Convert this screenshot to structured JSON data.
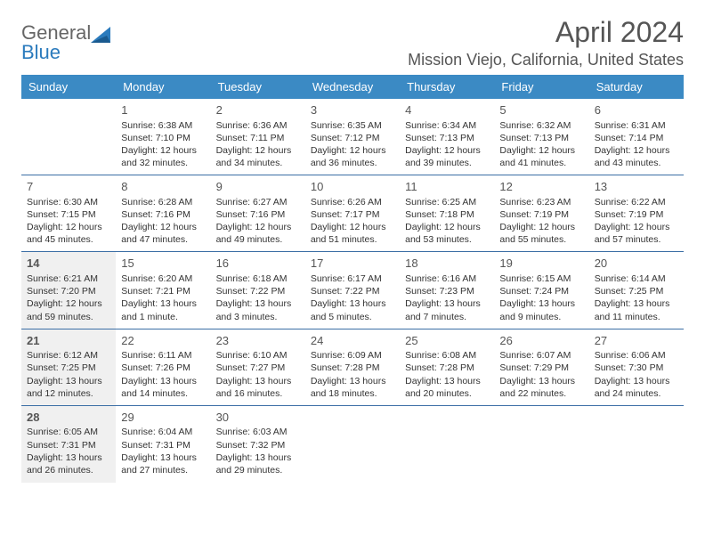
{
  "logo": {
    "text_top": "General",
    "text_bottom": "Blue",
    "accent_color": "#2b7bbd",
    "text_color": "#666666"
  },
  "title": "April 2024",
  "location": "Mission Viejo, California, United States",
  "colors": {
    "header_bg": "#3b8ac4",
    "row_border": "#3b6ea5",
    "shaded_bg": "#f0f0f0",
    "text": "#333333",
    "daynum": "#555555"
  },
  "day_headers": [
    "Sunday",
    "Monday",
    "Tuesday",
    "Wednesday",
    "Thursday",
    "Friday",
    "Saturday"
  ],
  "weeks": [
    [
      {
        "empty": true
      },
      {
        "day": "1",
        "sunrise": "Sunrise: 6:38 AM",
        "sunset": "Sunset: 7:10 PM",
        "daylight1": "Daylight: 12 hours",
        "daylight2": "and 32 minutes."
      },
      {
        "day": "2",
        "sunrise": "Sunrise: 6:36 AM",
        "sunset": "Sunset: 7:11 PM",
        "daylight1": "Daylight: 12 hours",
        "daylight2": "and 34 minutes."
      },
      {
        "day": "3",
        "sunrise": "Sunrise: 6:35 AM",
        "sunset": "Sunset: 7:12 PM",
        "daylight1": "Daylight: 12 hours",
        "daylight2": "and 36 minutes."
      },
      {
        "day": "4",
        "sunrise": "Sunrise: 6:34 AM",
        "sunset": "Sunset: 7:13 PM",
        "daylight1": "Daylight: 12 hours",
        "daylight2": "and 39 minutes."
      },
      {
        "day": "5",
        "sunrise": "Sunrise: 6:32 AM",
        "sunset": "Sunset: 7:13 PM",
        "daylight1": "Daylight: 12 hours",
        "daylight2": "and 41 minutes."
      },
      {
        "day": "6",
        "sunrise": "Sunrise: 6:31 AM",
        "sunset": "Sunset: 7:14 PM",
        "daylight1": "Daylight: 12 hours",
        "daylight2": "and 43 minutes."
      }
    ],
    [
      {
        "day": "7",
        "sunrise": "Sunrise: 6:30 AM",
        "sunset": "Sunset: 7:15 PM",
        "daylight1": "Daylight: 12 hours",
        "daylight2": "and 45 minutes."
      },
      {
        "day": "8",
        "sunrise": "Sunrise: 6:28 AM",
        "sunset": "Sunset: 7:16 PM",
        "daylight1": "Daylight: 12 hours",
        "daylight2": "and 47 minutes."
      },
      {
        "day": "9",
        "sunrise": "Sunrise: 6:27 AM",
        "sunset": "Sunset: 7:16 PM",
        "daylight1": "Daylight: 12 hours",
        "daylight2": "and 49 minutes."
      },
      {
        "day": "10",
        "sunrise": "Sunrise: 6:26 AM",
        "sunset": "Sunset: 7:17 PM",
        "daylight1": "Daylight: 12 hours",
        "daylight2": "and 51 minutes."
      },
      {
        "day": "11",
        "sunrise": "Sunrise: 6:25 AM",
        "sunset": "Sunset: 7:18 PM",
        "daylight1": "Daylight: 12 hours",
        "daylight2": "and 53 minutes."
      },
      {
        "day": "12",
        "sunrise": "Sunrise: 6:23 AM",
        "sunset": "Sunset: 7:19 PM",
        "daylight1": "Daylight: 12 hours",
        "daylight2": "and 55 minutes."
      },
      {
        "day": "13",
        "sunrise": "Sunrise: 6:22 AM",
        "sunset": "Sunset: 7:19 PM",
        "daylight1": "Daylight: 12 hours",
        "daylight2": "and 57 minutes."
      }
    ],
    [
      {
        "day": "14",
        "shaded": true,
        "sunrise": "Sunrise: 6:21 AM",
        "sunset": "Sunset: 7:20 PM",
        "daylight1": "Daylight: 12 hours",
        "daylight2": "and 59 minutes."
      },
      {
        "day": "15",
        "sunrise": "Sunrise: 6:20 AM",
        "sunset": "Sunset: 7:21 PM",
        "daylight1": "Daylight: 13 hours",
        "daylight2": "and 1 minute."
      },
      {
        "day": "16",
        "sunrise": "Sunrise: 6:18 AM",
        "sunset": "Sunset: 7:22 PM",
        "daylight1": "Daylight: 13 hours",
        "daylight2": "and 3 minutes."
      },
      {
        "day": "17",
        "sunrise": "Sunrise: 6:17 AM",
        "sunset": "Sunset: 7:22 PM",
        "daylight1": "Daylight: 13 hours",
        "daylight2": "and 5 minutes."
      },
      {
        "day": "18",
        "sunrise": "Sunrise: 6:16 AM",
        "sunset": "Sunset: 7:23 PM",
        "daylight1": "Daylight: 13 hours",
        "daylight2": "and 7 minutes."
      },
      {
        "day": "19",
        "sunrise": "Sunrise: 6:15 AM",
        "sunset": "Sunset: 7:24 PM",
        "daylight1": "Daylight: 13 hours",
        "daylight2": "and 9 minutes."
      },
      {
        "day": "20",
        "sunrise": "Sunrise: 6:14 AM",
        "sunset": "Sunset: 7:25 PM",
        "daylight1": "Daylight: 13 hours",
        "daylight2": "and 11 minutes."
      }
    ],
    [
      {
        "day": "21",
        "shaded": true,
        "sunrise": "Sunrise: 6:12 AM",
        "sunset": "Sunset: 7:25 PM",
        "daylight1": "Daylight: 13 hours",
        "daylight2": "and 12 minutes."
      },
      {
        "day": "22",
        "sunrise": "Sunrise: 6:11 AM",
        "sunset": "Sunset: 7:26 PM",
        "daylight1": "Daylight: 13 hours",
        "daylight2": "and 14 minutes."
      },
      {
        "day": "23",
        "sunrise": "Sunrise: 6:10 AM",
        "sunset": "Sunset: 7:27 PM",
        "daylight1": "Daylight: 13 hours",
        "daylight2": "and 16 minutes."
      },
      {
        "day": "24",
        "sunrise": "Sunrise: 6:09 AM",
        "sunset": "Sunset: 7:28 PM",
        "daylight1": "Daylight: 13 hours",
        "daylight2": "and 18 minutes."
      },
      {
        "day": "25",
        "sunrise": "Sunrise: 6:08 AM",
        "sunset": "Sunset: 7:28 PM",
        "daylight1": "Daylight: 13 hours",
        "daylight2": "and 20 minutes."
      },
      {
        "day": "26",
        "sunrise": "Sunrise: 6:07 AM",
        "sunset": "Sunset: 7:29 PM",
        "daylight1": "Daylight: 13 hours",
        "daylight2": "and 22 minutes."
      },
      {
        "day": "27",
        "sunrise": "Sunrise: 6:06 AM",
        "sunset": "Sunset: 7:30 PM",
        "daylight1": "Daylight: 13 hours",
        "daylight2": "and 24 minutes."
      }
    ],
    [
      {
        "day": "28",
        "shaded": true,
        "sunrise": "Sunrise: 6:05 AM",
        "sunset": "Sunset: 7:31 PM",
        "daylight1": "Daylight: 13 hours",
        "daylight2": "and 26 minutes."
      },
      {
        "day": "29",
        "sunrise": "Sunrise: 6:04 AM",
        "sunset": "Sunset: 7:31 PM",
        "daylight1": "Daylight: 13 hours",
        "daylight2": "and 27 minutes."
      },
      {
        "day": "30",
        "sunrise": "Sunrise: 6:03 AM",
        "sunset": "Sunset: 7:32 PM",
        "daylight1": "Daylight: 13 hours",
        "daylight2": "and 29 minutes."
      },
      {
        "empty": true
      },
      {
        "empty": true
      },
      {
        "empty": true
      },
      {
        "empty": true
      }
    ]
  ]
}
